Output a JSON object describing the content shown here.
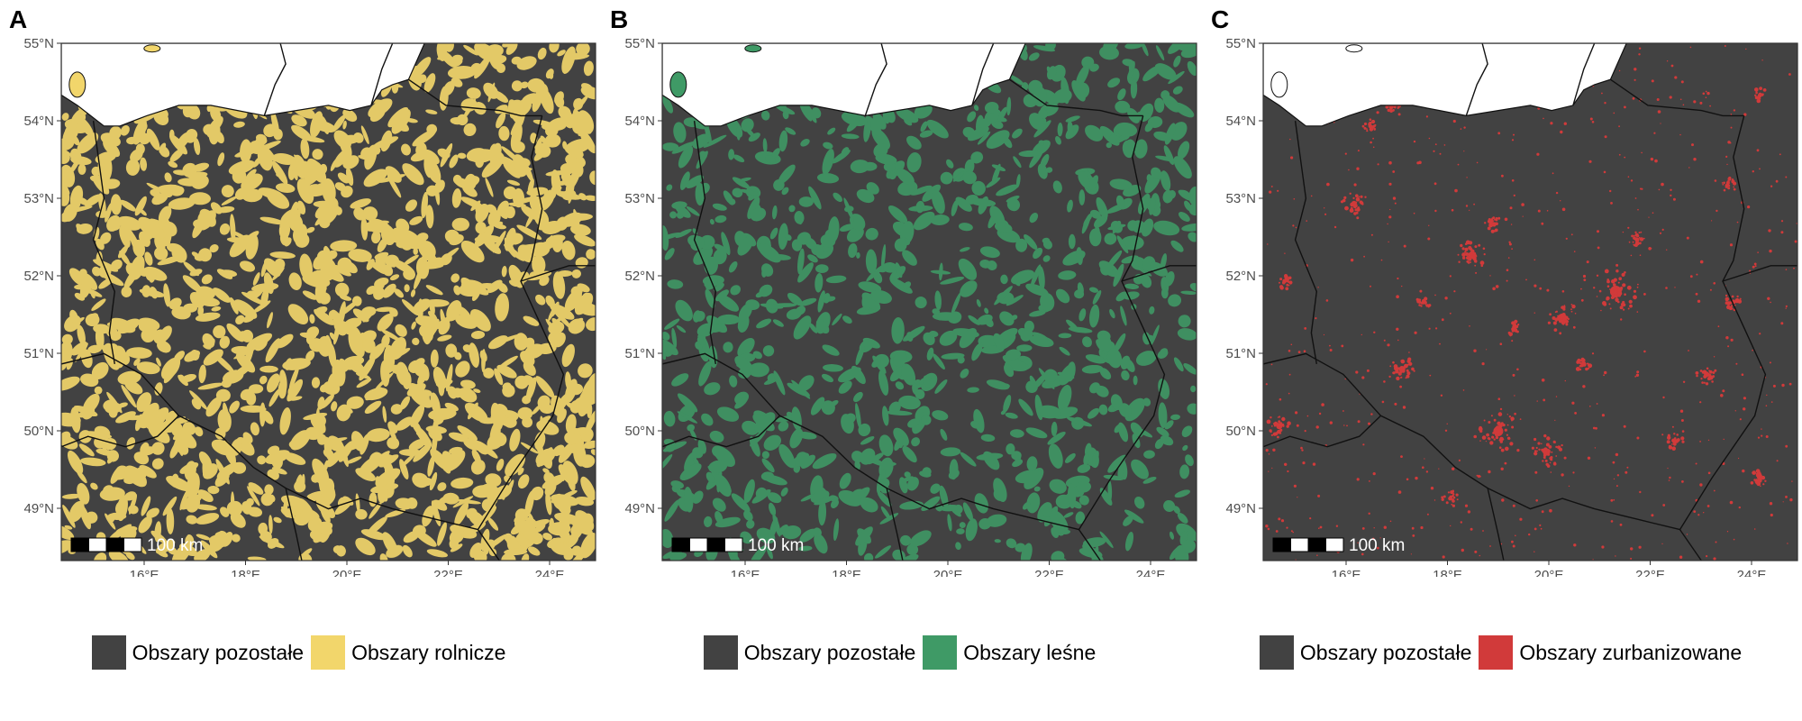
{
  "colors": {
    "other": "#424242",
    "agricultural": "#f2d66b",
    "forest": "#3f9a66",
    "urban": "#d13a3a",
    "water": "#ffffff",
    "border": "#111111"
  },
  "axes": {
    "lat_labels": [
      "55°N",
      "54°N",
      "53°N",
      "52°N",
      "51°N",
      "50°N",
      "49°N"
    ],
    "lon_labels": [
      "16°E",
      "18°E",
      "20°E",
      "22°E",
      "24°E"
    ]
  },
  "scale_bar_label": "100 km",
  "panels": [
    {
      "letter": "A",
      "theme": "agricultural",
      "legend": [
        {
          "label": "Obszary pozostałe",
          "color": "#424242"
        },
        {
          "label": "Obszary rolnicze",
          "color": "#f2d66b"
        }
      ]
    },
    {
      "letter": "B",
      "theme": "forest",
      "legend": [
        {
          "label": "Obszary pozostałe",
          "color": "#424242"
        },
        {
          "label": "Obszary leśne",
          "color": "#3f9a66"
        }
      ]
    },
    {
      "letter": "C",
      "theme": "urban",
      "legend": [
        {
          "label": "Obszary pozostałe",
          "color": "#424242"
        },
        {
          "label": "Obszary zurbanizowane",
          "color": "#d13a3a"
        }
      ]
    }
  ]
}
